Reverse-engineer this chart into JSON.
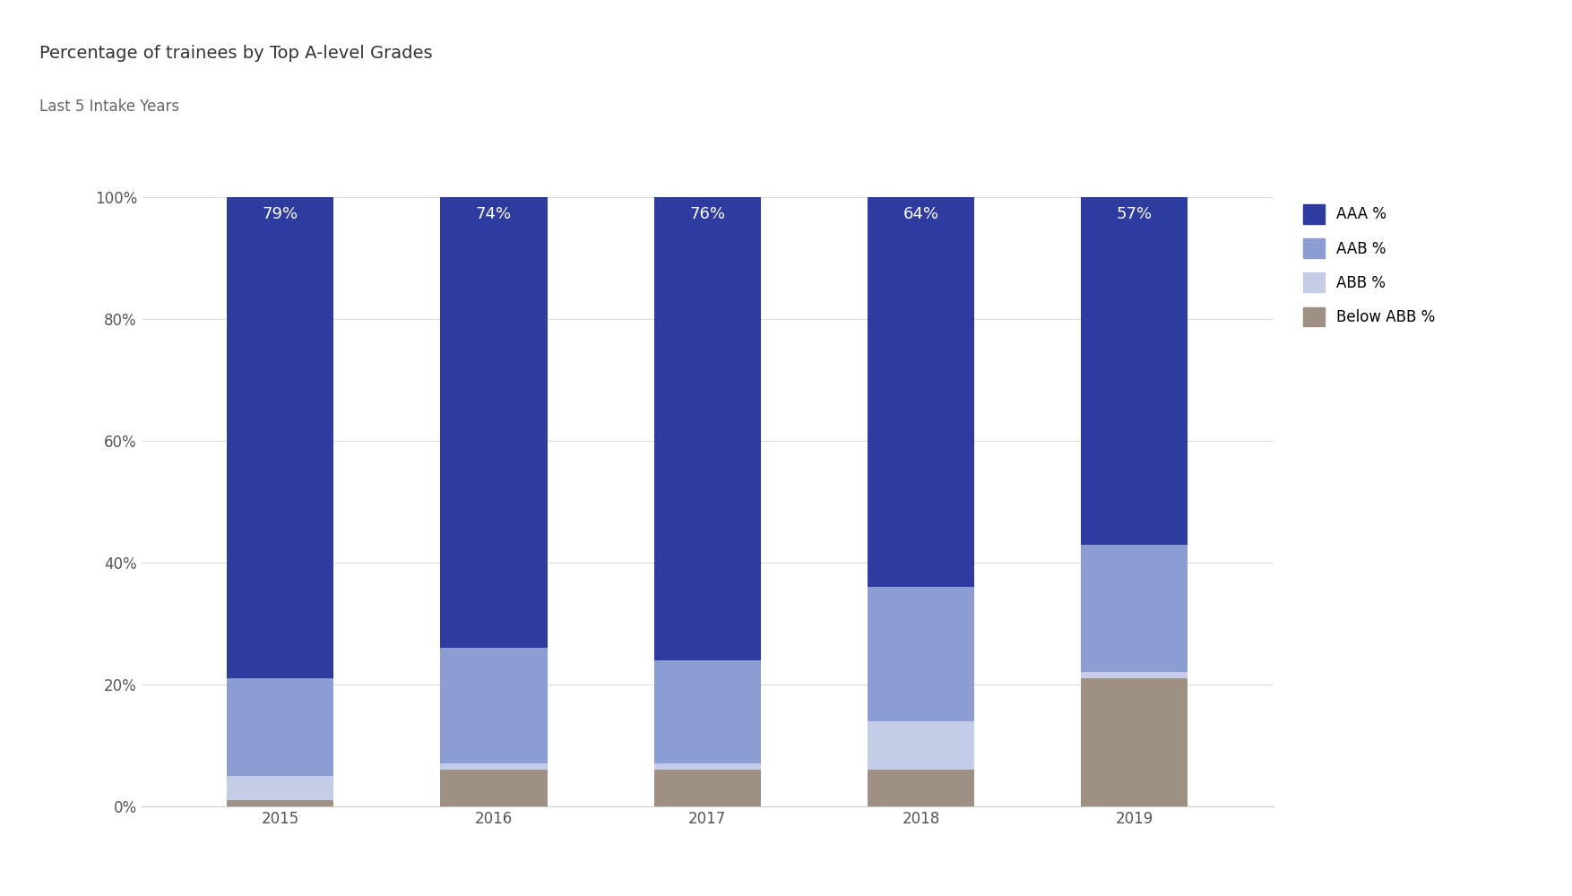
{
  "title": "Percentage of trainees by Top A-level Grades",
  "subtitle": "Last 5 Intake Years",
  "years": [
    "2015",
    "2016",
    "2017",
    "2018",
    "2019"
  ],
  "series": {
    "AAA %": [
      79,
      74,
      76,
      64,
      57
    ],
    "AAB %": [
      16,
      19,
      17,
      22,
      21
    ],
    "ABB %": [
      4,
      1,
      1,
      8,
      1
    ],
    "Below ABB %": [
      1,
      6,
      6,
      6,
      21
    ]
  },
  "colors": {
    "AAA %": "#2e3b9f",
    "AAB %": "#8c9dd4",
    "ABB %": "#c5cce8",
    "Below ABB %": "#9e9082"
  },
  "label_values": [
    "79%",
    "74%",
    "76%",
    "64%",
    "57%"
  ],
  "title_fontsize": 14,
  "subtitle_fontsize": 12,
  "background_color": "#ffffff",
  "ylim": [
    0,
    100
  ],
  "yticks": [
    0,
    20,
    40,
    60,
    80,
    100
  ],
  "ytick_labels": [
    "0%",
    "20%",
    "40%",
    "60%",
    "80%",
    "100%"
  ],
  "bar_width": 0.5,
  "label_fontsize": 13,
  "tick_fontsize": 12,
  "legend_fontsize": 12
}
